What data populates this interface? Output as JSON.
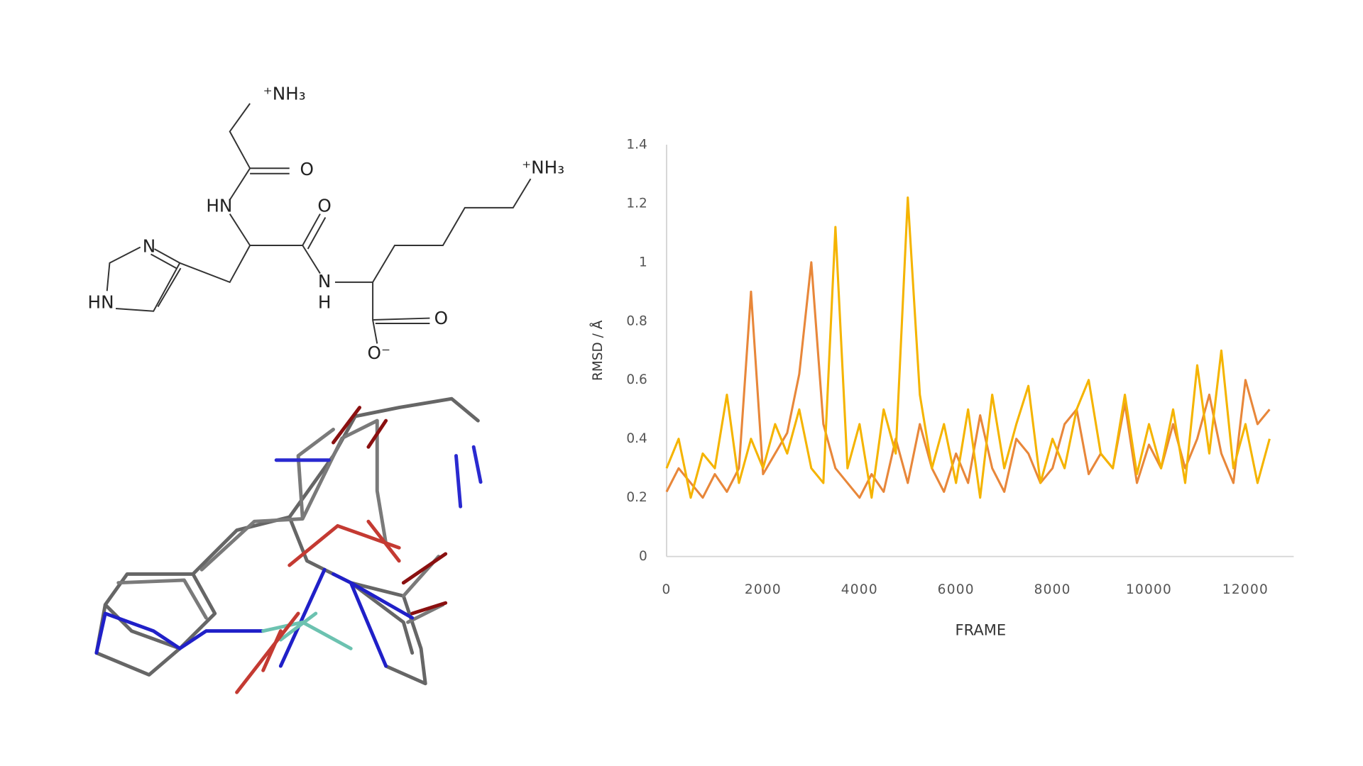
{
  "molecule": {
    "labels": [
      "⁺NH₃",
      "O",
      "HN",
      "O",
      "N",
      "H",
      "N",
      "HN",
      "⁺NH₃",
      "O",
      "O⁻"
    ]
  },
  "chart_data": {
    "type": "line",
    "xlabel": "FRAME",
    "ylabel": "RMSD / Å",
    "x": [
      0,
      250,
      500,
      750,
      1000,
      1250,
      1500,
      1750,
      2000,
      2250,
      2500,
      2750,
      3000,
      3250,
      3500,
      3750,
      4000,
      4250,
      4500,
      4750,
      5000,
      5250,
      5500,
      5750,
      6000,
      6250,
      6500,
      6750,
      7000,
      7250,
      7500,
      7750,
      8000,
      8250,
      8500,
      8750,
      9000,
      9250,
      9500,
      9750,
      10000,
      10250,
      10500,
      10750,
      11000,
      11250,
      11500,
      11750,
      12000,
      12250,
      12500
    ],
    "series": [
      {
        "color": "#e8873a",
        "values": [
          0.22,
          0.3,
          0.25,
          0.2,
          0.28,
          0.22,
          0.3,
          0.9,
          0.28,
          0.35,
          0.42,
          0.62,
          1.0,
          0.45,
          0.3,
          0.25,
          0.2,
          0.28,
          0.22,
          0.4,
          0.25,
          0.45,
          0.3,
          0.22,
          0.35,
          0.25,
          0.48,
          0.3,
          0.22,
          0.4,
          0.35,
          0.25,
          0.3,
          0.45,
          0.5,
          0.28,
          0.35,
          0.3,
          0.52,
          0.25,
          0.38,
          0.3,
          0.45,
          0.3,
          0.4,
          0.55,
          0.35,
          0.25,
          0.6,
          0.45,
          0.5
        ]
      },
      {
        "color": "#f5b400",
        "values": [
          0.3,
          0.4,
          0.2,
          0.35,
          0.3,
          0.55,
          0.25,
          0.4,
          0.3,
          0.45,
          0.35,
          0.5,
          0.3,
          0.25,
          1.12,
          0.3,
          0.45,
          0.2,
          0.5,
          0.35,
          1.22,
          0.55,
          0.3,
          0.45,
          0.25,
          0.5,
          0.2,
          0.55,
          0.3,
          0.45,
          0.58,
          0.25,
          0.4,
          0.3,
          0.5,
          0.6,
          0.35,
          0.3,
          0.55,
          0.28,
          0.45,
          0.3,
          0.5,
          0.25,
          0.65,
          0.35,
          0.7,
          0.3,
          0.45,
          0.25,
          0.4
        ]
      }
    ],
    "xlim": [
      0,
      13000
    ],
    "xticks": [
      0,
      2000,
      4000,
      6000,
      8000,
      10000,
      12000
    ],
    "ylim": [
      0,
      1.4
    ],
    "yticks": [
      0,
      0.2,
      0.4,
      0.6,
      0.8,
      1,
      1.2,
      1.4
    ],
    "grid": false
  }
}
